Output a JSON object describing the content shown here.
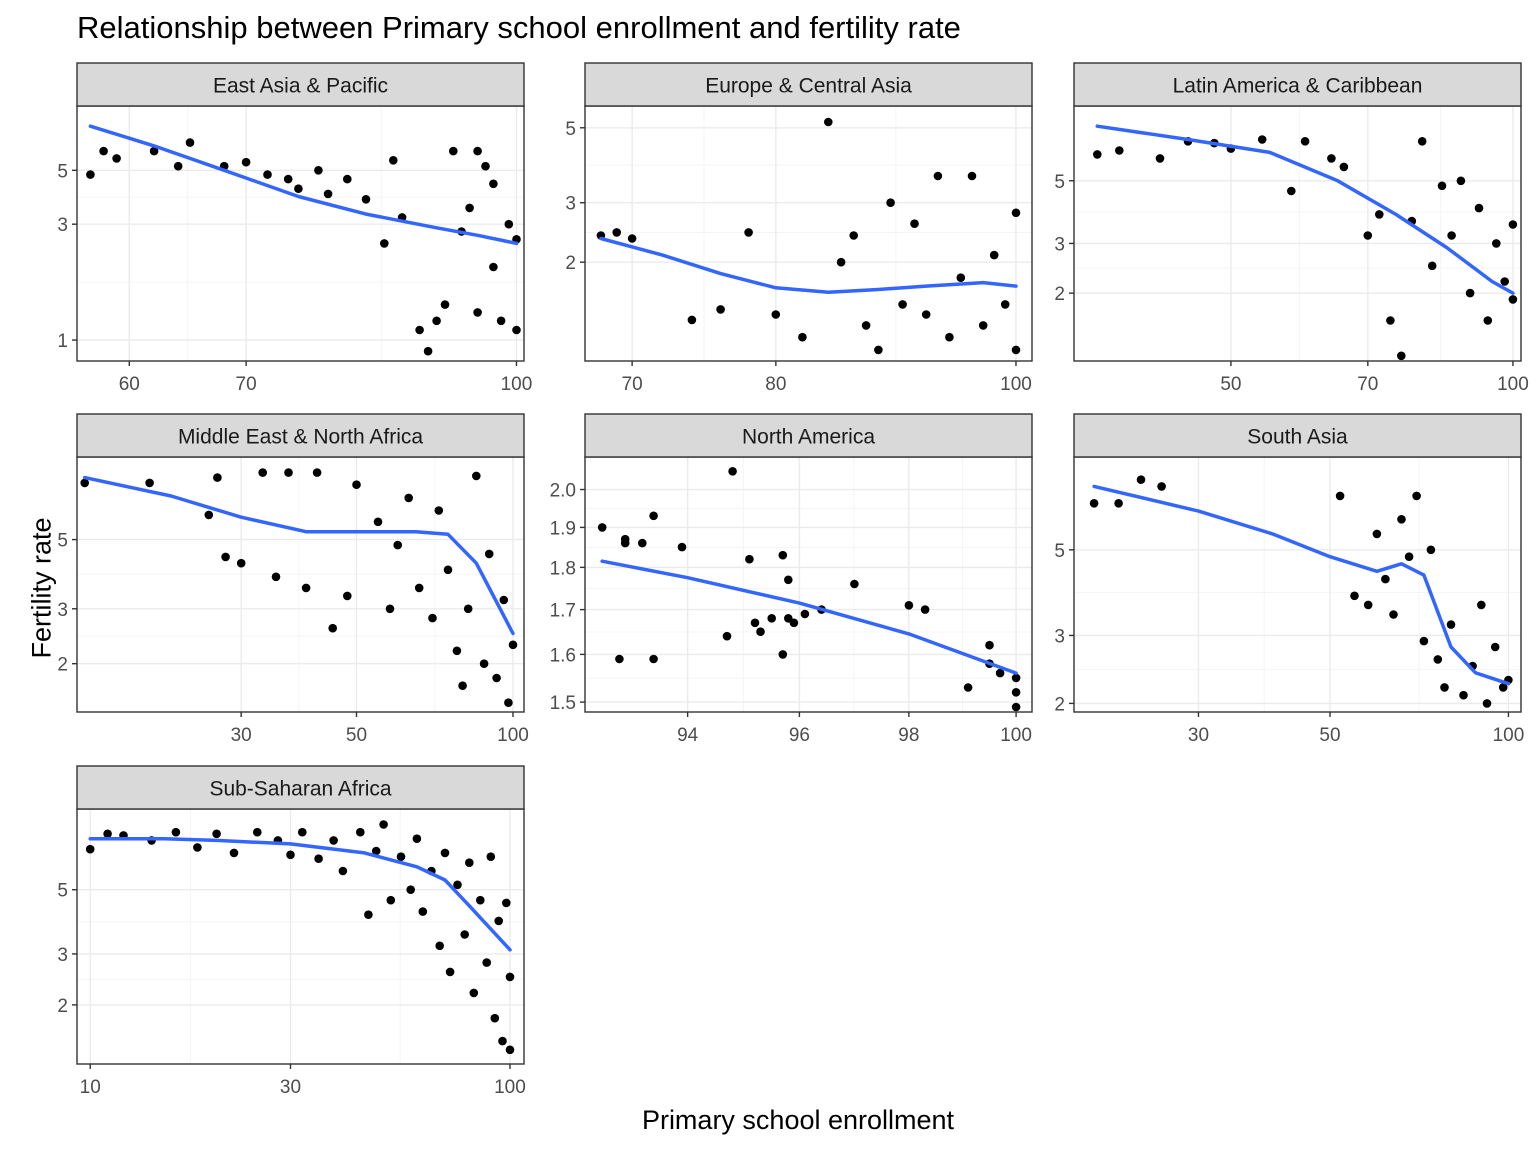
{
  "chart_data": {
    "type": "scatter",
    "title": "Relationship between Primary school enrollment and fertility rate",
    "xlabel": "Primary school enrollment",
    "ylabel": "Fertility rate",
    "x_scale": "log",
    "y_scale": "log",
    "grid": true,
    "legend": "none",
    "colors": {
      "points": "#000000",
      "smooth": "#3366FF",
      "strip_fill": "#D9D9D9",
      "grid_major": "#EBEBEB",
      "grid_minor": "#F5F5F5",
      "panel_border": "#333333",
      "axis_text": "#4D4D4D"
    },
    "facets": [
      {
        "name": "East Asia & Pacific",
        "xlim": [
          56,
          101
        ],
        "ylim": [
          0.82,
          9.2
        ],
        "xticks": [
          60,
          70,
          100
        ],
        "yticks": [
          1,
          3,
          5
        ],
        "smooth": [
          [
            57,
            7.6
          ],
          [
            62,
            6.3
          ],
          [
            68,
            5.0
          ],
          [
            75,
            3.9
          ],
          [
            82,
            3.3
          ],
          [
            90,
            2.9
          ],
          [
            95,
            2.7
          ],
          [
            100,
            2.5
          ]
        ],
        "points": [
          [
            57,
            4.8
          ],
          [
            58,
            6.0
          ],
          [
            59,
            5.6
          ],
          [
            62,
            6.0
          ],
          [
            64,
            5.2
          ],
          [
            65,
            6.5
          ],
          [
            68,
            5.2
          ],
          [
            70,
            5.4
          ],
          [
            72,
            4.8
          ],
          [
            74,
            4.6
          ],
          [
            75,
            4.2
          ],
          [
            77,
            5.0
          ],
          [
            78,
            4.0
          ],
          [
            80,
            4.6
          ],
          [
            82,
            3.8
          ],
          [
            84,
            2.5
          ],
          [
            85,
            5.5
          ],
          [
            86,
            3.2
          ],
          [
            88,
            1.1
          ],
          [
            89,
            0.9
          ],
          [
            90,
            1.2
          ],
          [
            91,
            1.4
          ],
          [
            92,
            6.0
          ],
          [
            93,
            2.8
          ],
          [
            94,
            3.5
          ],
          [
            95,
            1.3
          ],
          [
            96,
            5.2
          ],
          [
            97,
            2.0
          ],
          [
            98,
            1.2
          ],
          [
            99,
            3.0
          ],
          [
            100,
            1.1
          ],
          [
            95,
            6.0
          ],
          [
            97,
            4.4
          ],
          [
            100,
            2.6
          ]
        ]
      },
      {
        "name": "Europe & Central Asia",
        "xlim": [
          67,
          101.5
        ],
        "ylim": [
          1.02,
          5.8
        ],
        "xticks": [
          70,
          80,
          100
        ],
        "yticks": [
          2,
          3,
          5
        ],
        "smooth": [
          [
            68,
            2.35
          ],
          [
            72,
            2.1
          ],
          [
            76,
            1.85
          ],
          [
            80,
            1.68
          ],
          [
            84,
            1.63
          ],
          [
            88,
            1.66
          ],
          [
            92,
            1.7
          ],
          [
            97,
            1.74
          ],
          [
            100,
            1.7
          ]
        ],
        "points": [
          [
            68,
            2.4
          ],
          [
            69,
            2.45
          ],
          [
            70,
            2.35
          ],
          [
            74,
            1.35
          ],
          [
            76,
            1.45
          ],
          [
            78,
            2.45
          ],
          [
            80,
            1.4
          ],
          [
            82,
            1.2
          ],
          [
            84,
            5.2
          ],
          [
            85,
            2.0
          ],
          [
            86,
            2.4
          ],
          [
            87,
            1.3
          ],
          [
            88,
            1.1
          ],
          [
            89,
            3.0
          ],
          [
            90,
            1.5
          ],
          [
            91,
            2.6
          ],
          [
            92,
            1.4
          ],
          [
            93,
            3.6
          ],
          [
            94,
            1.2
          ],
          [
            95,
            1.8
          ],
          [
            96,
            3.6
          ],
          [
            97,
            1.3
          ],
          [
            98,
            2.1
          ],
          [
            99,
            1.5
          ],
          [
            100,
            1.1
          ],
          [
            100,
            2.8
          ]
        ]
      },
      {
        "name": "Latin America & Caribbean",
        "xlim": [
          34,
          102
        ],
        "ylim": [
          1.15,
          9.2
        ],
        "xticks": [
          50,
          70,
          100
        ],
        "yticks": [
          2,
          3,
          5
        ],
        "smooth": [
          [
            36,
            7.8
          ],
          [
            45,
            7.0
          ],
          [
            55,
            6.3
          ],
          [
            65,
            5.0
          ],
          [
            75,
            3.8
          ],
          [
            85,
            2.9
          ],
          [
            95,
            2.2
          ],
          [
            100,
            2.0
          ]
        ],
        "points": [
          [
            36,
            6.2
          ],
          [
            38,
            6.4
          ],
          [
            42,
            6.0
          ],
          [
            45,
            6.9
          ],
          [
            48,
            6.8
          ],
          [
            50,
            6.5
          ],
          [
            54,
            7.0
          ],
          [
            58,
            4.6
          ],
          [
            60,
            6.9
          ],
          [
            64,
            6.0
          ],
          [
            66,
            5.6
          ],
          [
            70,
            3.2
          ],
          [
            72,
            3.8
          ],
          [
            74,
            1.6
          ],
          [
            76,
            1.2
          ],
          [
            78,
            3.6
          ],
          [
            80,
            6.9
          ],
          [
            82,
            2.5
          ],
          [
            84,
            4.8
          ],
          [
            86,
            3.2
          ],
          [
            88,
            5.0
          ],
          [
            90,
            2.0
          ],
          [
            92,
            4.0
          ],
          [
            94,
            1.6
          ],
          [
            96,
            3.0
          ],
          [
            98,
            2.2
          ],
          [
            100,
            3.5
          ],
          [
            100,
            1.9
          ]
        ]
      },
      {
        "name": "Middle East & North Africa",
        "xlim": [
          14.5,
          105
        ],
        "ylim": [
          1.4,
          9.2
        ],
        "xticks": [
          30,
          50,
          100
        ],
        "yticks": [
          2,
          3,
          5
        ],
        "smooth": [
          [
            15,
            7.9
          ],
          [
            22,
            6.9
          ],
          [
            30,
            5.9
          ],
          [
            40,
            5.3
          ],
          [
            50,
            5.3
          ],
          [
            65,
            5.3
          ],
          [
            75,
            5.2
          ],
          [
            85,
            4.2
          ],
          [
            100,
            2.5
          ]
        ],
        "points": [
          [
            15,
            7.6
          ],
          [
            20,
            7.6
          ],
          [
            26,
            6.0
          ],
          [
            27,
            7.9
          ],
          [
            28,
            4.4
          ],
          [
            30,
            4.2
          ],
          [
            33,
            8.2
          ],
          [
            35,
            3.8
          ],
          [
            37,
            8.2
          ],
          [
            40,
            3.5
          ],
          [
            42,
            8.2
          ],
          [
            45,
            2.6
          ],
          [
            48,
            3.3
          ],
          [
            50,
            7.5
          ],
          [
            55,
            5.7
          ],
          [
            58,
            3.0
          ],
          [
            60,
            4.8
          ],
          [
            63,
            6.8
          ],
          [
            66,
            3.5
          ],
          [
            70,
            2.8
          ],
          [
            72,
            6.2
          ],
          [
            75,
            4.0
          ],
          [
            78,
            2.2
          ],
          [
            80,
            1.7
          ],
          [
            82,
            3.0
          ],
          [
            85,
            8.0
          ],
          [
            88,
            2.0
          ],
          [
            90,
            4.5
          ],
          [
            93,
            1.8
          ],
          [
            96,
            3.2
          ],
          [
            98,
            1.5
          ],
          [
            100,
            2.3
          ]
        ]
      },
      {
        "name": "North America",
        "xlim": [
          92.2,
          100.3
        ],
        "ylim": [
          1.48,
          2.09
        ],
        "xticks": [
          94,
          96,
          98,
          100
        ],
        "yticks": [
          1.5,
          1.6,
          1.7,
          1.8,
          1.9,
          2.0
        ],
        "smooth": [
          [
            92.5,
            1.815
          ],
          [
            94,
            1.775
          ],
          [
            96,
            1.715
          ],
          [
            98,
            1.645
          ],
          [
            100,
            1.56
          ]
        ],
        "points": [
          [
            92.5,
            1.9
          ],
          [
            92.8,
            1.59
          ],
          [
            92.9,
            1.87
          ],
          [
            92.9,
            1.86
          ],
          [
            93.2,
            1.86
          ],
          [
            93.4,
            1.93
          ],
          [
            93.4,
            1.59
          ],
          [
            93.9,
            1.85
          ],
          [
            94.7,
            1.64
          ],
          [
            94.8,
            2.05
          ],
          [
            95.1,
            1.82
          ],
          [
            95.2,
            1.67
          ],
          [
            95.3,
            1.65
          ],
          [
            95.5,
            1.68
          ],
          [
            95.7,
            1.6
          ],
          [
            95.7,
            1.83
          ],
          [
            95.8,
            1.77
          ],
          [
            95.8,
            1.68
          ],
          [
            95.9,
            1.67
          ],
          [
            96.1,
            1.69
          ],
          [
            96.4,
            1.7
          ],
          [
            97.0,
            1.76
          ],
          [
            98.0,
            1.71
          ],
          [
            98.3,
            1.7
          ],
          [
            99.1,
            1.53
          ],
          [
            99.5,
            1.62
          ],
          [
            99.5,
            1.58
          ],
          [
            99.7,
            1.56
          ],
          [
            100.0,
            1.55
          ],
          [
            100.0,
            1.52
          ],
          [
            100.0,
            1.49
          ]
        ]
      },
      {
        "name": "South Asia",
        "xlim": [
          18.5,
          105
        ],
        "ylim": [
          1.9,
          8.7
        ],
        "xticks": [
          30,
          50,
          100
        ],
        "yticks": [
          2,
          3,
          5
        ],
        "smooth": [
          [
            20,
            7.3
          ],
          [
            30,
            6.3
          ],
          [
            40,
            5.5
          ],
          [
            50,
            4.8
          ],
          [
            60,
            4.4
          ],
          [
            66,
            4.6
          ],
          [
            72,
            4.3
          ],
          [
            80,
            2.8
          ],
          [
            88,
            2.4
          ],
          [
            100,
            2.25
          ]
        ],
        "points": [
          [
            20,
            6.6
          ],
          [
            22,
            6.6
          ],
          [
            24,
            7.6
          ],
          [
            26,
            7.3
          ],
          [
            52,
            6.9
          ],
          [
            55,
            3.8
          ],
          [
            58,
            3.6
          ],
          [
            60,
            5.5
          ],
          [
            62,
            4.2
          ],
          [
            64,
            3.4
          ],
          [
            66,
            6.0
          ],
          [
            68,
            4.8
          ],
          [
            70,
            6.9
          ],
          [
            72,
            2.9
          ],
          [
            74,
            5.0
          ],
          [
            76,
            2.6
          ],
          [
            78,
            2.2
          ],
          [
            80,
            3.2
          ],
          [
            84,
            2.1
          ],
          [
            87,
            2.5
          ],
          [
            90,
            3.6
          ],
          [
            92,
            2.0
          ],
          [
            95,
            2.8
          ],
          [
            98,
            2.2
          ],
          [
            100,
            2.3
          ]
        ]
      },
      {
        "name": "Sub-Saharan Africa",
        "xlim": [
          9.3,
          108
        ],
        "ylim": [
          1.25,
          9.5
        ],
        "xticks": [
          10,
          30,
          100
        ],
        "yticks": [
          2,
          3,
          5
        ],
        "smooth": [
          [
            10,
            7.5
          ],
          [
            15,
            7.5
          ],
          [
            20,
            7.4
          ],
          [
            30,
            7.2
          ],
          [
            45,
            6.7
          ],
          [
            60,
            6.0
          ],
          [
            70,
            5.4
          ],
          [
            80,
            4.4
          ],
          [
            100,
            3.1
          ]
        ],
        "points": [
          [
            10,
            6.9
          ],
          [
            11,
            7.8
          ],
          [
            12,
            7.7
          ],
          [
            14,
            7.4
          ],
          [
            16,
            7.9
          ],
          [
            18,
            7.0
          ],
          [
            20,
            7.8
          ],
          [
            22,
            6.7
          ],
          [
            25,
            7.9
          ],
          [
            28,
            7.4
          ],
          [
            30,
            6.6
          ],
          [
            32,
            7.9
          ],
          [
            35,
            6.4
          ],
          [
            38,
            7.4
          ],
          [
            40,
            5.8
          ],
          [
            44,
            7.9
          ],
          [
            46,
            4.1
          ],
          [
            48,
            6.8
          ],
          [
            50,
            8.4
          ],
          [
            52,
            4.6
          ],
          [
            55,
            6.5
          ],
          [
            58,
            5.0
          ],
          [
            60,
            7.5
          ],
          [
            62,
            4.2
          ],
          [
            65,
            5.8
          ],
          [
            68,
            3.2
          ],
          [
            70,
            6.7
          ],
          [
            72,
            2.6
          ],
          [
            75,
            5.2
          ],
          [
            78,
            3.5
          ],
          [
            80,
            6.2
          ],
          [
            82,
            2.2
          ],
          [
            85,
            4.6
          ],
          [
            88,
            2.8
          ],
          [
            90,
            6.5
          ],
          [
            92,
            1.8
          ],
          [
            94,
            3.9
          ],
          [
            96,
            1.5
          ],
          [
            98,
            4.5
          ],
          [
            100,
            2.5
          ],
          [
            100,
            1.4
          ]
        ]
      }
    ]
  }
}
